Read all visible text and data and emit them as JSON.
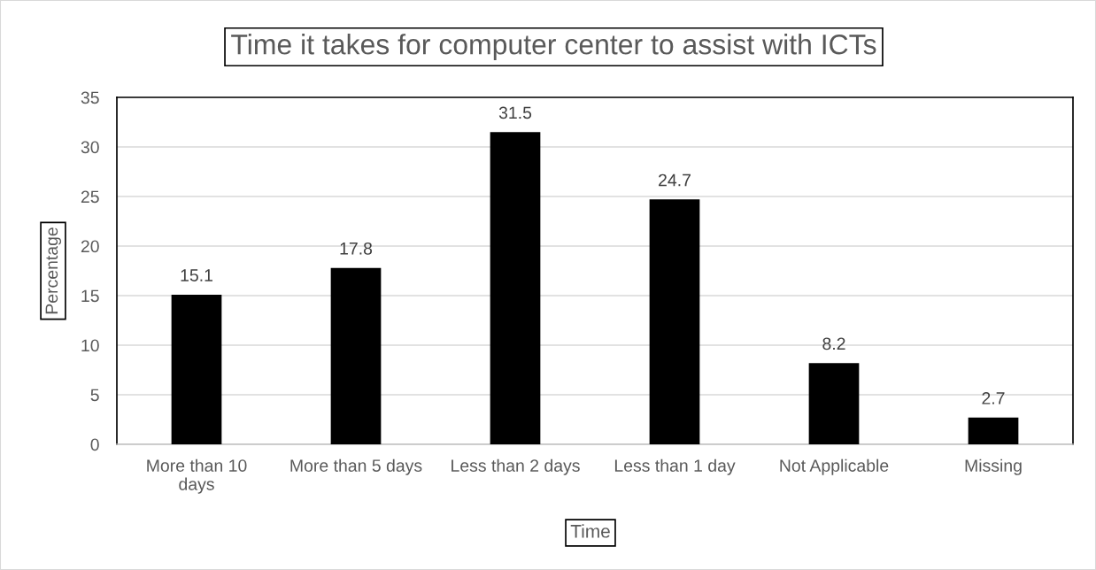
{
  "chart_data": {
    "type": "bar",
    "title": "Time it takes for computer center to assist with ICTs",
    "xlabel": "Time",
    "ylabel": "Percentage",
    "categories": [
      "More than 10 days",
      "More than 5 days",
      "Less than 2 days",
      "Less than 1 day",
      "Not Applicable",
      "Missing"
    ],
    "values": [
      15.1,
      17.8,
      31.5,
      24.7,
      8.2,
      2.7
    ],
    "color": "#000000",
    "ylim": [
      0,
      35
    ],
    "yticks": [
      0,
      5,
      10,
      15,
      20,
      25,
      30,
      35
    ],
    "grid": "y",
    "data_labels": true
  }
}
